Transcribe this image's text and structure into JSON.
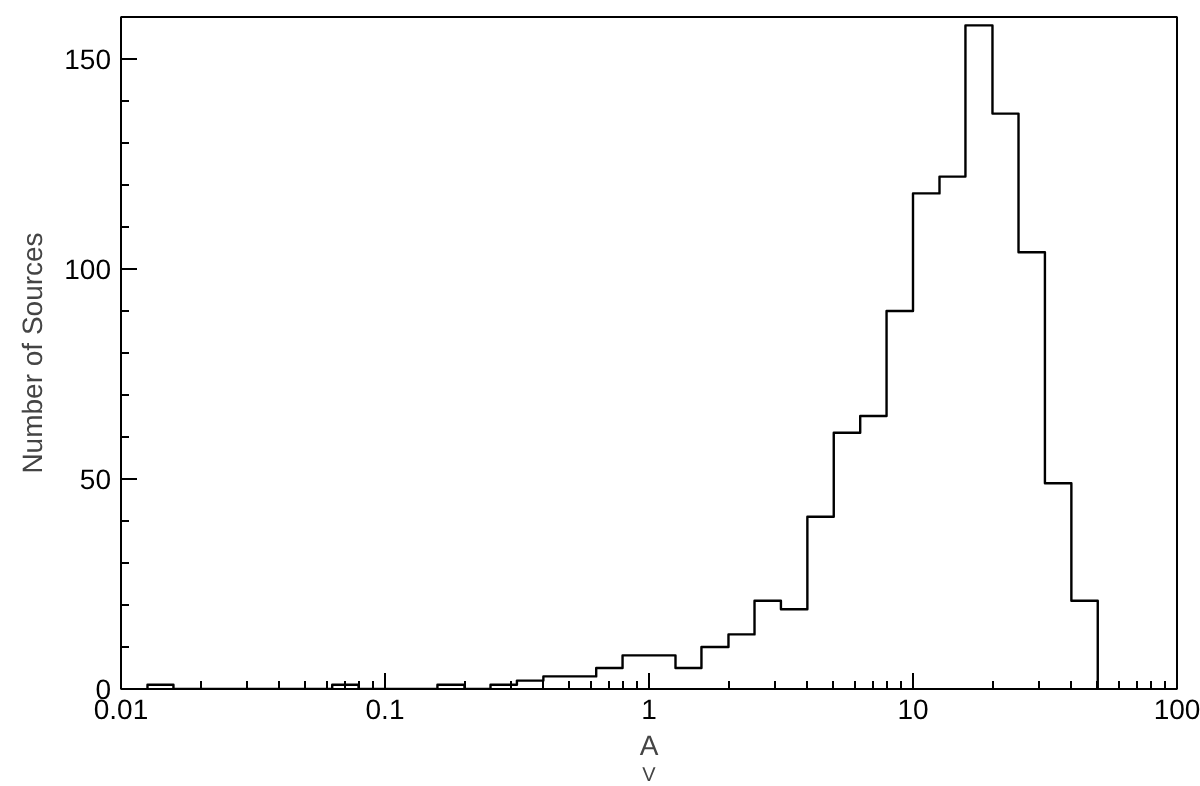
{
  "chart_data": {
    "type": "histogram",
    "xlabel": "A$_{V}$",
    "ylabel": "Number of Sources",
    "bins": [
      0.0126,
      0.0158,
      0.02,
      0.0251,
      0.0316,
      0.0398,
      0.0501,
      0.0631,
      0.0794,
      0.1,
      0.126,
      0.158,
      0.2,
      0.251,
      0.316,
      0.398,
      0.501,
      0.631,
      0.794,
      1,
      1.26,
      1.58,
      2,
      2.51,
      3.16,
      3.98,
      5.01,
      6.31,
      7.94,
      10,
      12.6,
      15.8,
      20,
      25.1,
      31.6,
      39.8,
      50.1
    ],
    "values": [
      1,
      0,
      0,
      0,
      0,
      0,
      0,
      1,
      0,
      0,
      0,
      1,
      0,
      1,
      2,
      3,
      3,
      5,
      8,
      8,
      5,
      10,
      13,
      21,
      19,
      41,
      61,
      65,
      90,
      118,
      122,
      158,
      137,
      104,
      49,
      21
    ],
    "color": "#000000",
    "log": "x",
    "xlim": [
      0.01,
      100
    ],
    "xticks": [
      0.01,
      0.1,
      1,
      10,
      100
    ],
    "ylim": [
      0,
      160
    ],
    "yticks": [
      0,
      50,
      100,
      150
    ],
    "grid": false
  }
}
